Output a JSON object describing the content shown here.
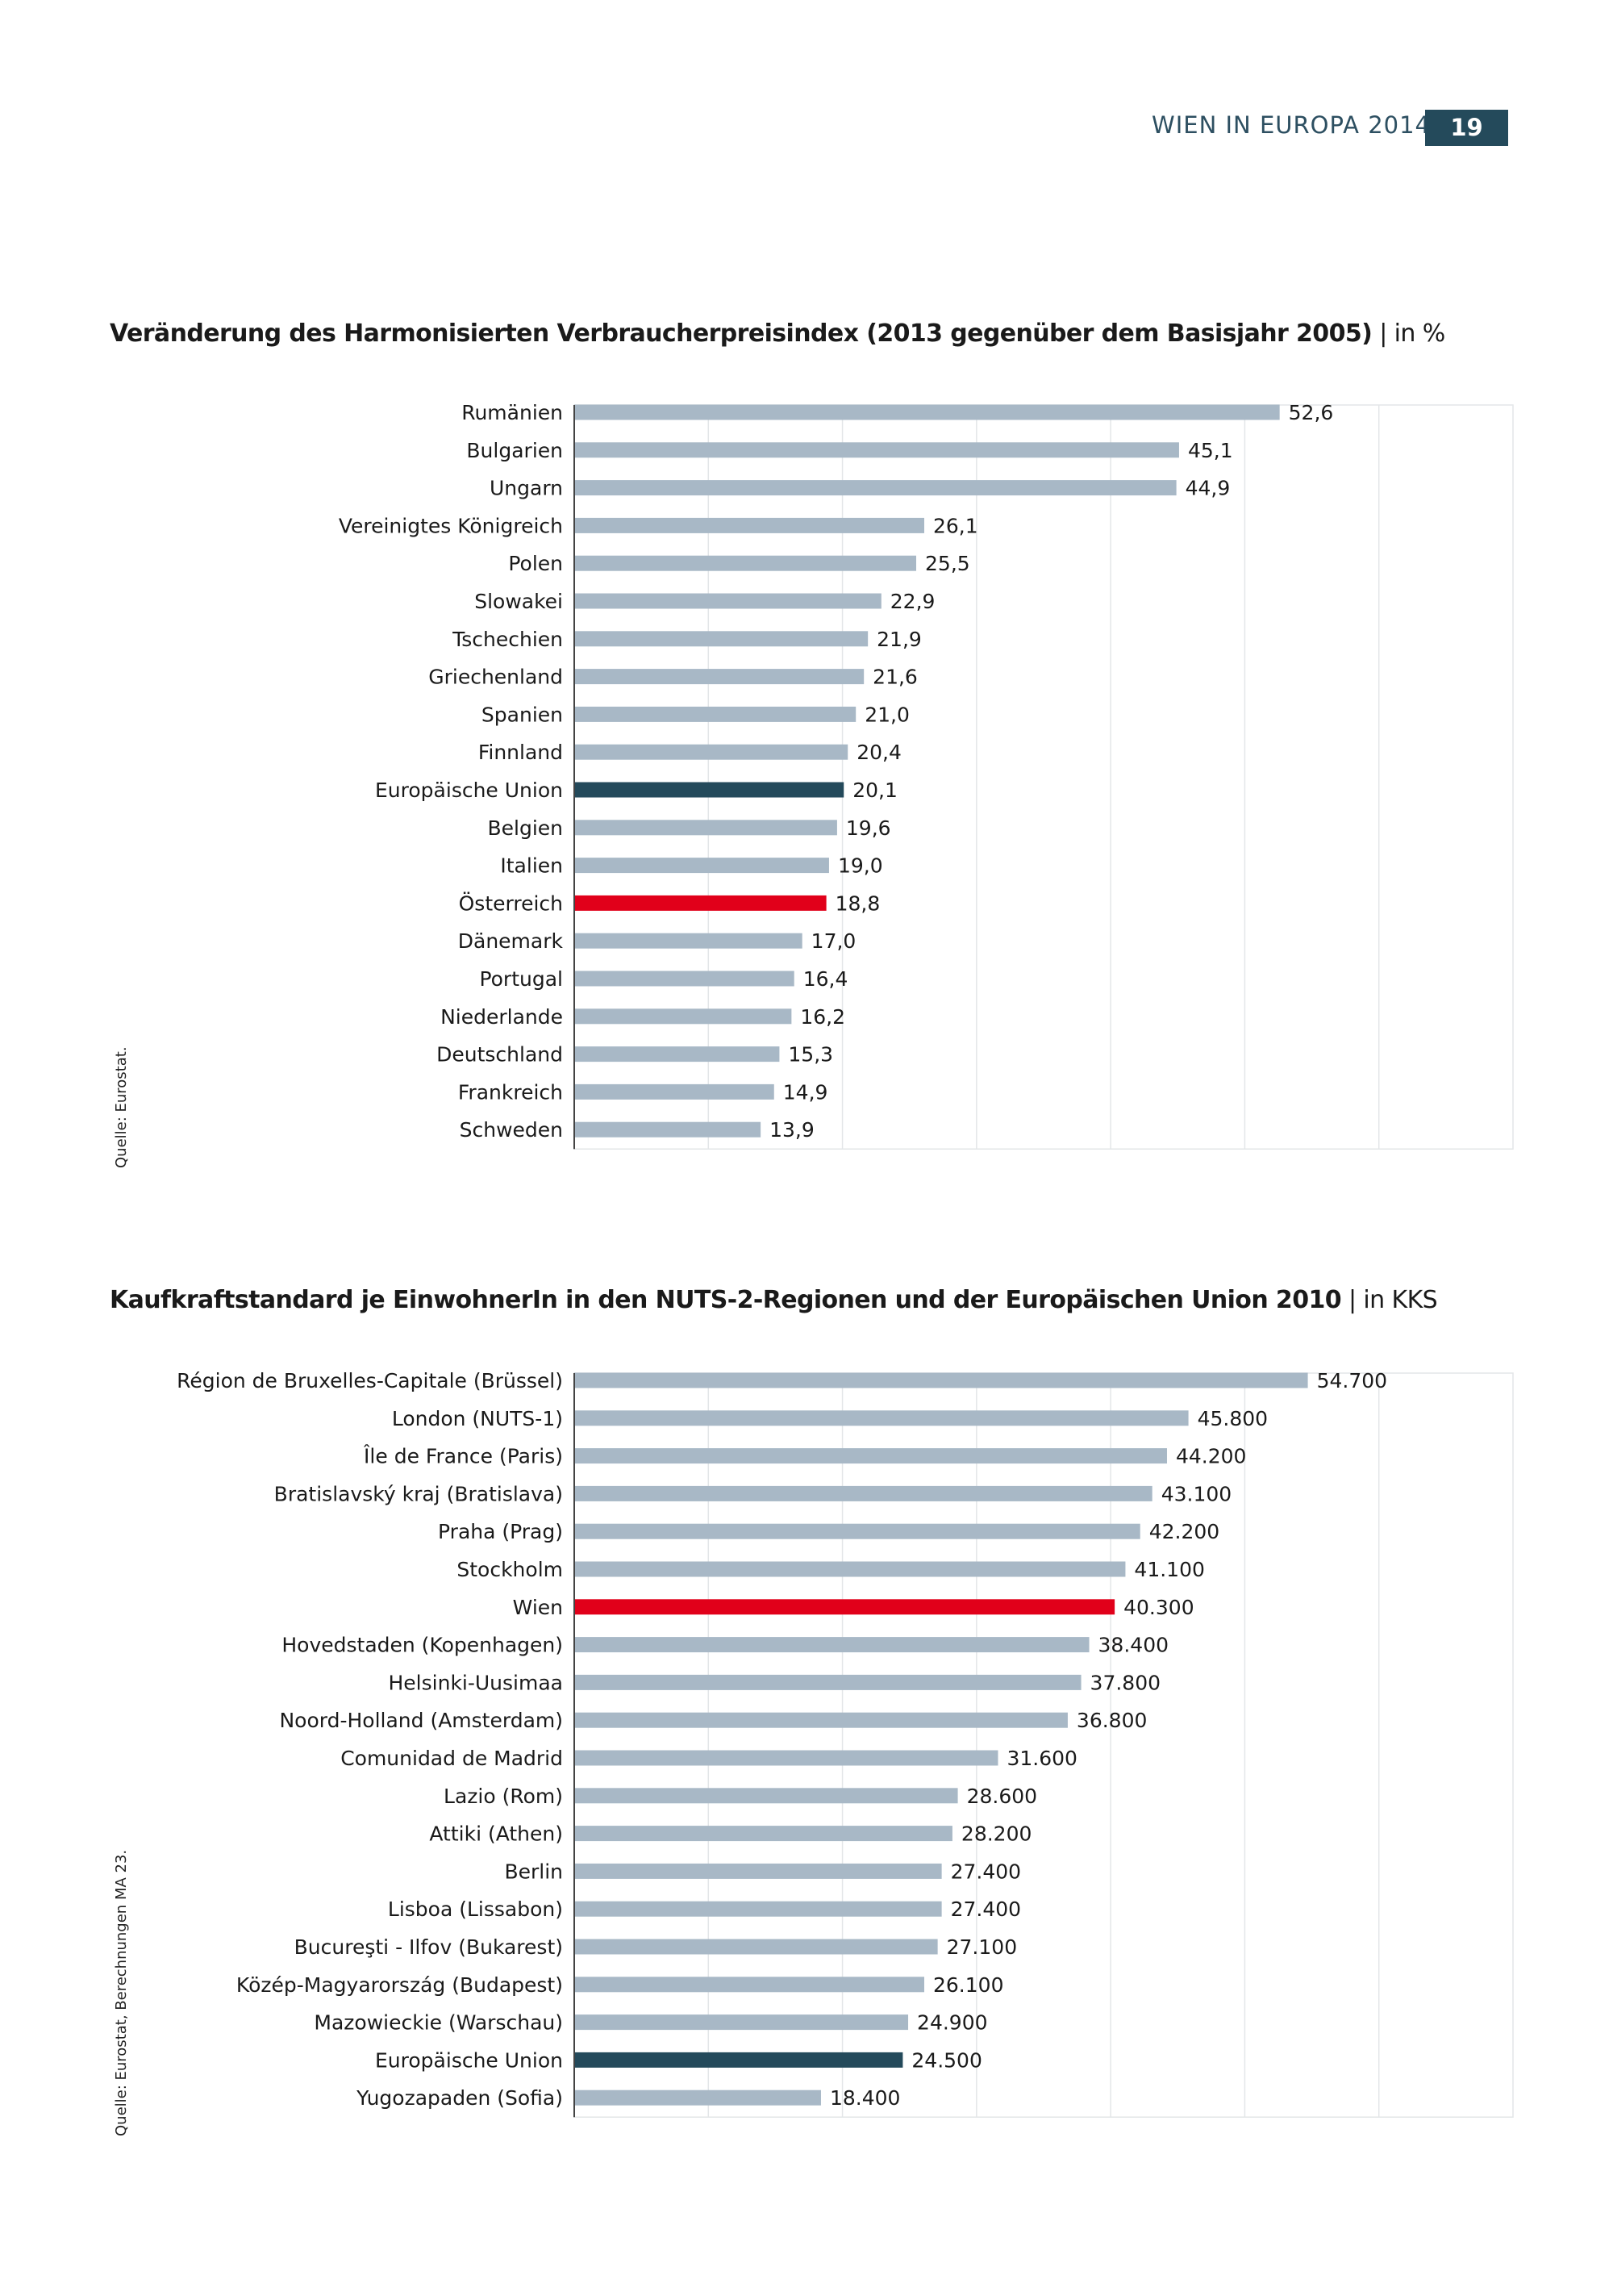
{
  "header": {
    "title": "WIEN IN EUROPA 2014",
    "page": "19"
  },
  "colors": {
    "bar": "#a8b8c6",
    "highlight_red": "#e1001a",
    "highlight_eu": "#244a5b",
    "grid": "#e3e6e8",
    "axis": "#444444"
  },
  "charts": [
    {
      "title": "Veränderung des Harmonisierten Verbraucherpreisindex (2013 gegenüber dem Basisjahr 2005)",
      "unit_label": "| in %",
      "source": "Quelle: Eurostat."
    },
    {
      "title": "Kaufkraftstandard je EinwohnerIn in den NUTS-2-Regionen und der Europäischen Union 2010",
      "unit_label": "| in KKS",
      "source": "Quelle: Eurostat, Berechnungen MA 23."
    }
  ],
  "chart_data": [
    {
      "type": "bar",
      "orientation": "horizontal",
      "title": "Veränderung des Harmonisierten Verbraucherpreisindex (2013 gegenüber dem Basisjahr 2005) | in %",
      "xlim": [
        0,
        70
      ],
      "grid": true,
      "categories": [
        "Rumänien",
        "Bulgarien",
        "Ungarn",
        "Vereinigtes Königreich",
        "Polen",
        "Slowakei",
        "Tschechien",
        "Griechenland",
        "Spanien",
        "Finnland",
        "Europäische Union",
        "Belgien",
        "Italien",
        "Österreich",
        "Dänemark",
        "Portugal",
        "Niederlande",
        "Deutschland",
        "Frankreich",
        "Schweden"
      ],
      "values": [
        52.6,
        45.1,
        44.9,
        26.1,
        25.5,
        22.9,
        21.9,
        21.6,
        21.0,
        20.4,
        20.1,
        19.6,
        19.0,
        18.8,
        17.0,
        16.4,
        16.2,
        15.3,
        14.9,
        13.9
      ],
      "value_labels": [
        "52,6",
        "45,1",
        "44,9",
        "26,1",
        "25,5",
        "22,9",
        "21,9",
        "21,6",
        "21,0",
        "20,4",
        "20,1",
        "19,6",
        "19,0",
        "18,8",
        "17,0",
        "16,4",
        "16,2",
        "15,3",
        "14,9",
        "13,9"
      ],
      "highlight": {
        "Österreich": "red",
        "Europäische Union": "eu"
      }
    },
    {
      "type": "bar",
      "orientation": "horizontal",
      "title": "Kaufkraftstandard je EinwohnerIn in den NUTS-2-Regionen und der Europäischen Union 2010 | in KKS",
      "xlim": [
        0,
        70000
      ],
      "grid": true,
      "categories": [
        "Région de Bruxelles-Capitale (Brüssel)",
        "London (NUTS-1)",
        "Île de France (Paris)",
        "Bratislavský kraj (Bratislava)",
        "Praha (Prag)",
        "Stockholm",
        "Wien",
        "Hovedstaden (Kopenhagen)",
        "Helsinki-Uusimaa",
        "Noord-Holland (Amsterdam)",
        "Comunidad de Madrid",
        "Lazio (Rom)",
        "Attiki (Athen)",
        "Berlin",
        "Lisboa (Lissabon)",
        "Bucureşti - Ilfov (Bukarest)",
        "Közép-Magyarország (Budapest)",
        "Mazowieckie (Warschau)",
        "Europäische Union",
        "Yugozapaden (Sofia)"
      ],
      "values": [
        54700,
        45800,
        44200,
        43100,
        42200,
        41100,
        40300,
        38400,
        37800,
        36800,
        31600,
        28600,
        28200,
        27400,
        27400,
        27100,
        26100,
        24900,
        24500,
        18400
      ],
      "value_labels": [
        "54.700",
        "45.800",
        "44.200",
        "43.100",
        "42.200",
        "41.100",
        "40.300",
        "38.400",
        "37.800",
        "36.800",
        "31.600",
        "28.600",
        "28.200",
        "27.400",
        "27.400",
        "27.100",
        "26.100",
        "24.900",
        "24.500",
        "18.400"
      ],
      "highlight": {
        "Wien": "red",
        "Europäische Union": "eu"
      }
    }
  ]
}
